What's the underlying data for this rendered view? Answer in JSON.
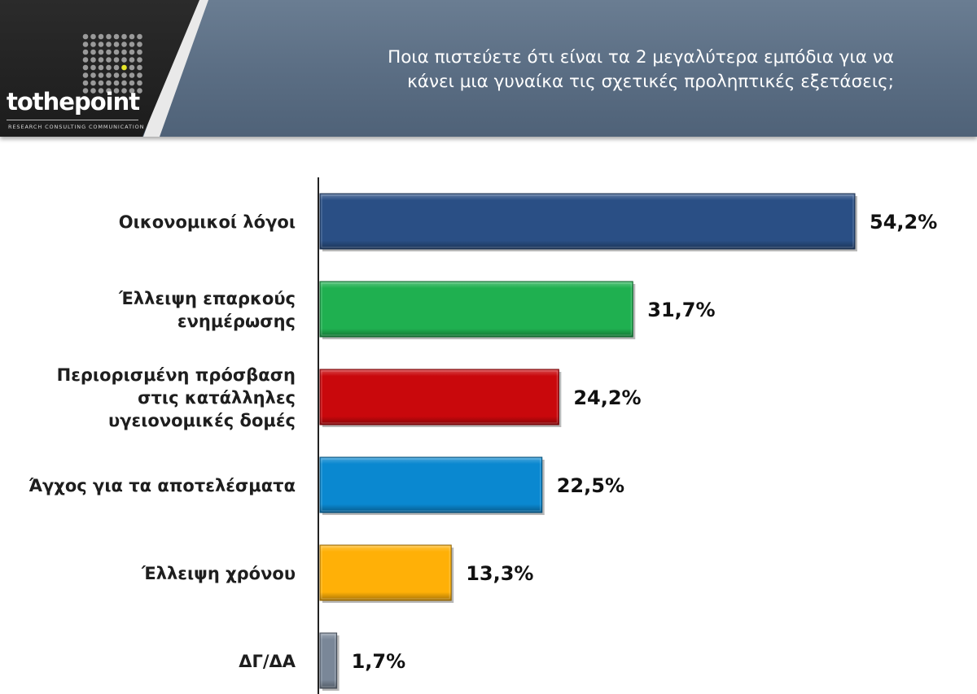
{
  "header": {
    "title_lines": [
      "Ποια πιστεύετε ότι είναι τα 2 μεγαλύτερα εμπόδια για να",
      "κάνει μια γυναίκα τις σχετικές προληπτικές εξετάσεις;"
    ],
    "logo_text": "tothepoint",
    "logo_tagline": "RESEARCH  CONSULTING  COMMUNICATION",
    "logo_accent_color": "#e6e62a"
  },
  "chart_data": {
    "type": "bar",
    "orientation": "horizontal",
    "title": "Ποια πιστεύετε ότι είναι τα 2 μεγαλύτερα εμπόδια για να κάνει μια γυναίκα τις σχετικές προληπτικές εξετάσεις;",
    "categories": [
      [
        "Οικονομικοί λόγοι"
      ],
      [
        "Έλλειψη επαρκούς",
        "ενημέρωσης"
      ],
      [
        "Περιορισμένη πρόσβαση",
        "στις κατάλληλες",
        "υγειονομικές δομές"
      ],
      [
        "Άγχος για τα αποτελέσματα"
      ],
      [
        "Έλλειψη χρόνου"
      ],
      [
        "ΔΓ/ΔΑ"
      ]
    ],
    "values": [
      54.2,
      31.7,
      24.2,
      22.5,
      13.3,
      1.7
    ],
    "value_labels": [
      "54,2%",
      "31,7%",
      "24,2%",
      "22,5%",
      "13,3%",
      "1,7%"
    ],
    "colors": [
      "#2a4f85",
      "#1fb050",
      "#c9080c",
      "#0a88d0",
      "#ffb007",
      "#7a8798"
    ],
    "xlim": [
      0,
      54.2
    ],
    "grid": false,
    "legend": "none"
  }
}
